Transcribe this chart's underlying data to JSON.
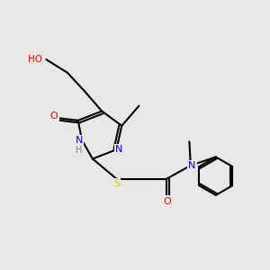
{
  "bg_color": "#e8e8e8",
  "bond_color": "#000000",
  "line_width": 1.5,
  "atom_colors": {
    "N": "#0000ff",
    "O": "#ff0000",
    "S": "#cccc00",
    "H": "#808080",
    "C": "#000000"
  }
}
